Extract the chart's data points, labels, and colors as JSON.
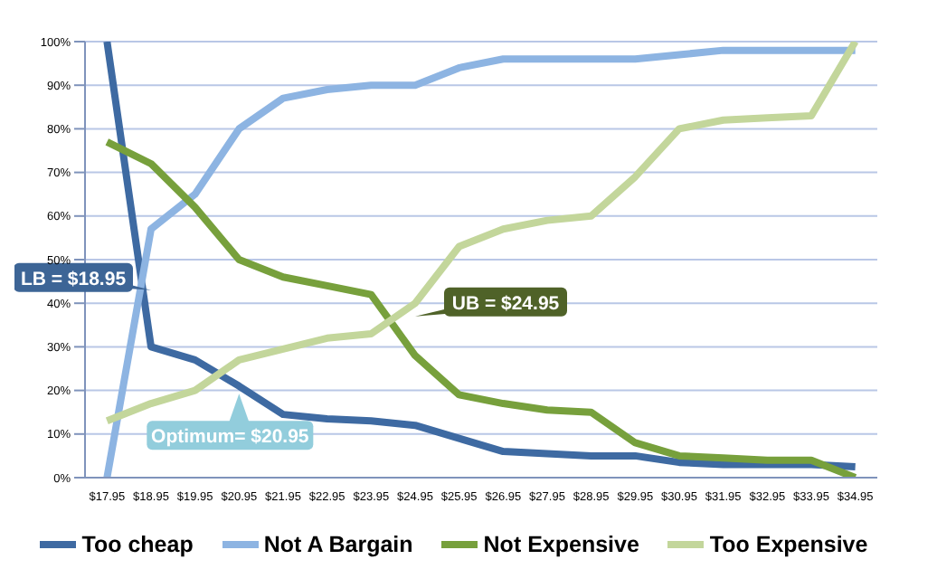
{
  "chart_data": {
    "type": "line",
    "categories": [
      "$17.95",
      "$18.95",
      "$19.95",
      "$20.95",
      "$21.95",
      "$22.95",
      "$23.95",
      "$24.95",
      "$25.95",
      "$26.95",
      "$27.95",
      "$28.95",
      "$29.95",
      "$30.95",
      "$31.95",
      "$32.95",
      "$33.95",
      "$34.95"
    ],
    "series": [
      {
        "name": "Too cheap",
        "color": "#3e6aa2",
        "values": [
          100,
          30,
          27,
          21,
          14.5,
          13.5,
          13,
          12,
          9,
          6,
          5.5,
          5,
          5,
          3.5,
          3,
          3,
          3,
          2.5
        ]
      },
      {
        "name": "Not A Bargain",
        "color": "#8db4e2",
        "values": [
          0,
          57,
          65,
          80,
          87,
          89,
          90,
          90,
          94,
          96,
          96,
          96,
          96,
          97,
          98,
          98,
          98,
          98
        ]
      },
      {
        "name": "Not Expensive",
        "color": "#77a03c",
        "values": [
          77,
          72,
          62,
          50,
          46,
          44,
          42,
          28,
          19,
          17,
          15.5,
          15,
          8,
          5,
          4.5,
          4,
          4,
          0
        ]
      },
      {
        "name": "Too Expensive",
        "color": "#c3d69b",
        "values": [
          13,
          17,
          20,
          27,
          29.5,
          32,
          33,
          40,
          53,
          57,
          59,
          60,
          69,
          80,
          82,
          82.5,
          83,
          100
        ]
      }
    ],
    "ylim": [
      0,
      100
    ],
    "yticks": [
      {
        "value": 0,
        "label": "0%"
      },
      {
        "value": 10,
        "label": "10%"
      },
      {
        "value": 20,
        "label": "20%"
      },
      {
        "value": 30,
        "label": "30%"
      },
      {
        "value": 40,
        "label": "40%"
      },
      {
        "value": 50,
        "label": "50%"
      },
      {
        "value": 60,
        "label": "60%"
      },
      {
        "value": 70,
        "label": "70%"
      },
      {
        "value": 80,
        "label": "80%"
      },
      {
        "value": 90,
        "label": "90%"
      },
      {
        "value": 100,
        "label": "100%"
      }
    ],
    "grid": "y",
    "legend": "bottom",
    "marker": "none",
    "line_style": "solid",
    "annotations": [
      {
        "text": "LB = $18.95",
        "x": "$18.95",
        "y": 43
      },
      {
        "text": "UB = $24.95",
        "x": "$24.95",
        "y": 37
      },
      {
        "text": "Optimum= $20.95",
        "x": "$20.95",
        "y": 23
      }
    ]
  }
}
